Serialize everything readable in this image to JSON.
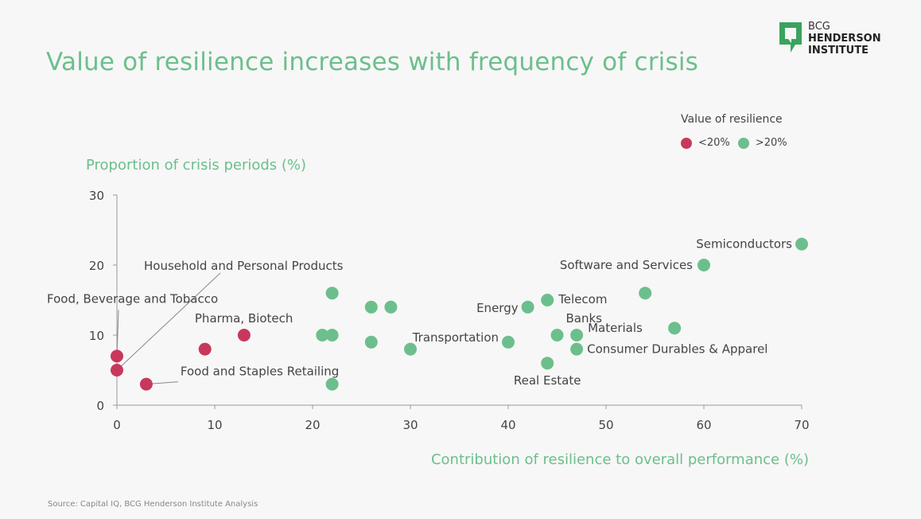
{
  "title": "Value of resilience increases with frequency of crisis",
  "logo": {
    "line1": "BCG",
    "line2": "HENDERSON",
    "line3": "INSTITUTE"
  },
  "legend": {
    "title": "Value of resilience",
    "items": [
      {
        "label": "<20%",
        "color": "#c8385c"
      },
      {
        "label": ">20%",
        "color": "#6cbf8c"
      }
    ]
  },
  "source": "Source: Capital IQ, BCG Henderson Institute Analysis",
  "chart_data": {
    "type": "scatter",
    "xlabel": "Contribution of resilience to overall performance (%)",
    "ylabel": "Proportion of crisis periods (%)",
    "xlim": [
      0,
      70
    ],
    "ylim": [
      0,
      30
    ],
    "x_ticks": [
      0,
      10,
      20,
      30,
      40,
      50,
      60,
      70
    ],
    "y_ticks": [
      0,
      10,
      20,
      30
    ],
    "grid": false,
    "legend_position": "top-right",
    "series": [
      {
        "name": "<20%",
        "color": "#c8385c",
        "points": [
          {
            "x": 0,
            "y": 7,
            "label": "Food, Beverage and Tobacco"
          },
          {
            "x": 0,
            "y": 5,
            "label": "Household and Personal Products"
          },
          {
            "x": 3,
            "y": 3,
            "label": "Food and Staples Retailing"
          },
          {
            "x": 9,
            "y": 8,
            "label": ""
          },
          {
            "x": 13,
            "y": 10,
            "label": "Pharma, Biotech"
          }
        ]
      },
      {
        "name": ">20%",
        "color": "#6cbf8c",
        "points": [
          {
            "x": 21,
            "y": 10,
            "label": ""
          },
          {
            "x": 22,
            "y": 10,
            "label": ""
          },
          {
            "x": 22,
            "y": 16,
            "label": ""
          },
          {
            "x": 22,
            "y": 3,
            "label": ""
          },
          {
            "x": 26,
            "y": 14,
            "label": ""
          },
          {
            "x": 26,
            "y": 9,
            "label": ""
          },
          {
            "x": 28,
            "y": 14,
            "label": ""
          },
          {
            "x": 30,
            "y": 8,
            "label": ""
          },
          {
            "x": 40,
            "y": 9,
            "label": "Transportation"
          },
          {
            "x": 42,
            "y": 14,
            "label": "Energy"
          },
          {
            "x": 44,
            "y": 15,
            "label": "Telecom"
          },
          {
            "x": 44,
            "y": 6,
            "label": "Real Estate"
          },
          {
            "x": 45,
            "y": 10,
            "label": "Banks"
          },
          {
            "x": 47,
            "y": 10,
            "label": "Materials"
          },
          {
            "x": 47,
            "y": 8,
            "label": "Consumer Durables & Apparel"
          },
          {
            "x": 54,
            "y": 16,
            "label": ""
          },
          {
            "x": 57,
            "y": 11,
            "label": ""
          },
          {
            "x": 60,
            "y": 20,
            "label": "Software and Services"
          },
          {
            "x": 70,
            "y": 23,
            "label": "Semiconductors"
          }
        ]
      }
    ]
  }
}
